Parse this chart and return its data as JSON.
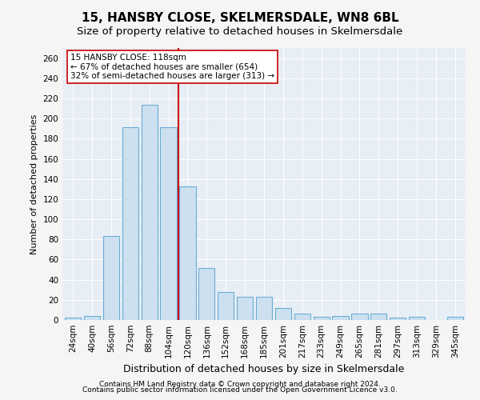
{
  "title": "15, HANSBY CLOSE, SKELMERSDALE, WN8 6BL",
  "subtitle": "Size of property relative to detached houses in Skelmersdale",
  "xlabel": "Distribution of detached houses by size in Skelmersdale",
  "ylabel": "Number of detached properties",
  "footer_line1": "Contains HM Land Registry data © Crown copyright and database right 2024.",
  "footer_line2": "Contains public sector information licensed under the Open Government Licence v3.0.",
  "categories": [
    "24sqm",
    "40sqm",
    "56sqm",
    "72sqm",
    "88sqm",
    "104sqm",
    "120sqm",
    "136sqm",
    "152sqm",
    "168sqm",
    "185sqm",
    "201sqm",
    "217sqm",
    "233sqm",
    "249sqm",
    "265sqm",
    "281sqm",
    "297sqm",
    "313sqm",
    "329sqm",
    "345sqm"
  ],
  "values": [
    2,
    4,
    83,
    191,
    214,
    191,
    133,
    52,
    28,
    23,
    23,
    12,
    6,
    3,
    4,
    6,
    6,
    2,
    3,
    0,
    3
  ],
  "bar_color": "#cce0f0",
  "bar_edge_color": "#6aadd5",
  "vline_color": "#cc0000",
  "annotation_box_facecolor": "#ffffff",
  "annotation_box_edgecolor": "#cc0000",
  "annotation_text_line1": "15 HANSBY CLOSE: 118sqm",
  "annotation_text_line2": "← 67% of detached houses are smaller (654)",
  "annotation_text_line3": "32% of semi-detached houses are larger (313) →",
  "ylim": [
    0,
    270
  ],
  "yticks": [
    0,
    20,
    40,
    60,
    80,
    100,
    120,
    140,
    160,
    180,
    200,
    220,
    240,
    260
  ],
  "plot_bg_color": "#e8eef5",
  "fig_bg_color": "#f5f5f5",
  "title_fontsize": 11,
  "subtitle_fontsize": 9.5,
  "ylabel_fontsize": 8,
  "xlabel_fontsize": 9,
  "tick_fontsize": 7.5,
  "annotation_fontsize": 7.5,
  "footer_fontsize": 6.5,
  "vline_x": 5.5
}
